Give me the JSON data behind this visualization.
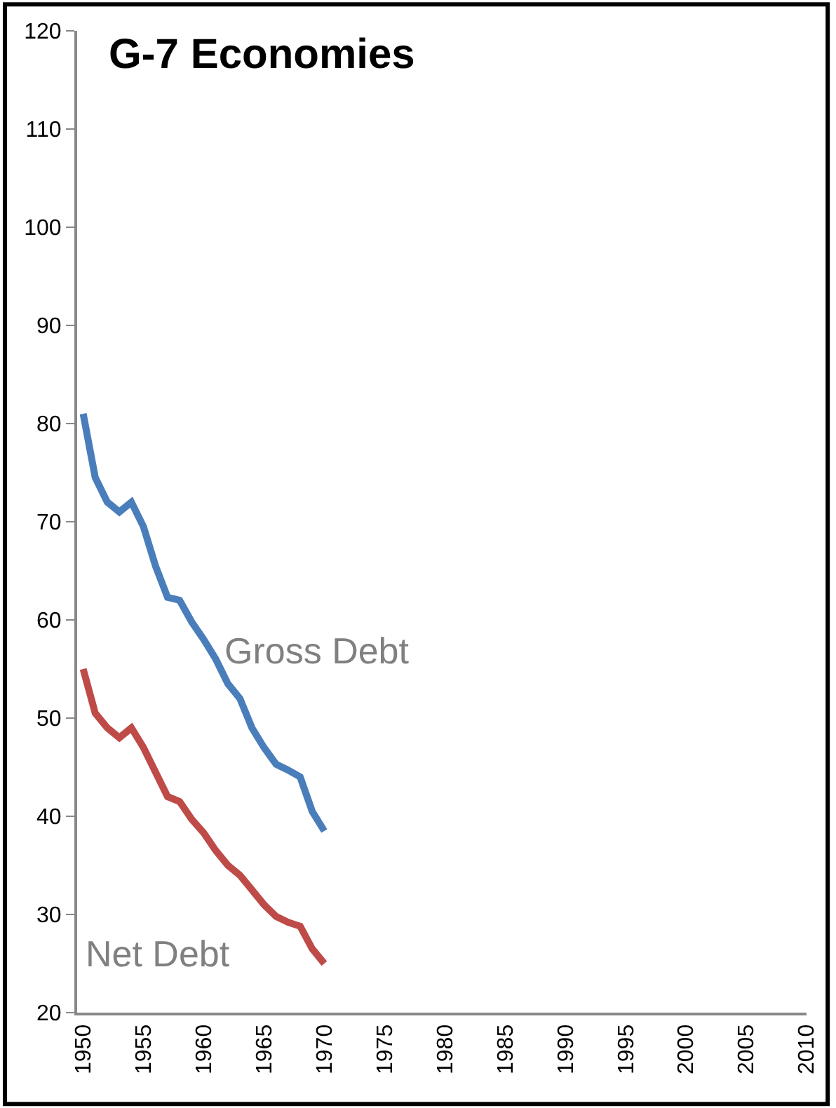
{
  "chart_data": {
    "type": "line",
    "title": "G-7 Economies",
    "x": [
      1950,
      1951,
      1952,
      1953,
      1954,
      1955,
      1956,
      1957,
      1958,
      1959,
      1960,
      1961,
      1962,
      1963,
      1964,
      1965,
      1966,
      1967,
      1968,
      1969,
      1970
    ],
    "series": [
      {
        "name": "Gross Debt",
        "color": "#4a7ebb",
        "values": [
          81,
          74.5,
          72,
          71,
          72,
          69.5,
          65.5,
          62.3,
          62,
          59.8,
          58,
          56,
          53.5,
          52,
          49,
          47,
          45.3,
          44.7,
          44,
          40.5,
          38.5
        ]
      },
      {
        "name": "Net Debt",
        "color": "#be4b48",
        "values": [
          55,
          50.5,
          49,
          48,
          49,
          47,
          44.5,
          42,
          41.5,
          39.7,
          38.3,
          36.5,
          35,
          34,
          32.5,
          31,
          29.8,
          29.2,
          28.8,
          26.5,
          25
        ]
      }
    ],
    "xlim": [
      1949.5,
      2010
    ],
    "xticks": [
      1950,
      1955,
      1960,
      1965,
      1970,
      1975,
      1980,
      1985,
      1990,
      1995,
      2000,
      2005,
      2010
    ],
    "ylim": [
      20,
      120
    ],
    "yticks": [
      20,
      30,
      40,
      50,
      60,
      70,
      80,
      90,
      100,
      110,
      120
    ],
    "legend": false,
    "marker": "none",
    "line_style": "solid"
  }
}
